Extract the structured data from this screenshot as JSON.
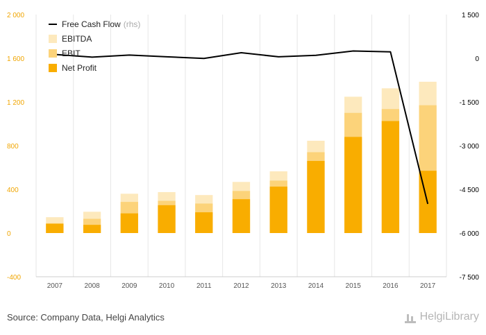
{
  "chart_data": {
    "type": "bar",
    "categories": [
      "2007",
      "2008",
      "2009",
      "2010",
      "2011",
      "2012",
      "2013",
      "2014",
      "2015",
      "2016",
      "2017"
    ],
    "series": [
      {
        "name": "EBITDA",
        "kind": "bar",
        "axis": "left",
        "color": "#fde9bd",
        "values": [
          145,
          195,
          360,
          375,
          348,
          468,
          565,
          845,
          1248,
          1325,
          1385
        ]
      },
      {
        "name": "EBIT",
        "kind": "bar",
        "axis": "left",
        "color": "#fcd37a",
        "values": [
          90,
          130,
          285,
          295,
          270,
          385,
          480,
          740,
          1100,
          1135,
          1170
        ]
      },
      {
        "name": "Net Profit",
        "kind": "bar",
        "axis": "left",
        "color": "#f9ad00",
        "values": [
          85,
          75,
          180,
          255,
          190,
          310,
          425,
          660,
          880,
          1025,
          570
        ]
      },
      {
        "name": "Free Cash Flow",
        "kind": "line",
        "axis": "right",
        "color": "#000000",
        "values": [
          130,
          40,
          110,
          50,
          -5,
          190,
          50,
          100,
          250,
          220,
          -5000
        ]
      }
    ],
    "y_left": {
      "lim": [
        -400,
        2000
      ],
      "ticks": [
        -400,
        0,
        400,
        800,
        1200,
        1600,
        2000
      ],
      "tick_labels": [
        "-400",
        "0",
        "400",
        "800",
        "1 200",
        "1 600",
        "2 000"
      ],
      "color": "#f0a500"
    },
    "y_right": {
      "lim": [
        -7500,
        1500
      ],
      "ticks": [
        -7500,
        -6000,
        -4500,
        -3000,
        -1500,
        0,
        1500
      ],
      "tick_labels": [
        "-7 500",
        "-6 000",
        "-4 500",
        "-3 000",
        "-1 500",
        "0",
        "1 500"
      ],
      "color": "#000000"
    },
    "legend": {
      "position": "top-left",
      "items": [
        "Free Cash Flow",
        "EBITDA",
        "EBIT",
        "Net Profit"
      ],
      "note": "(rhs)"
    },
    "grid": "vertical-category-separators"
  },
  "source_text": "Source: Company Data, Helgi Analytics",
  "brand_text": "HelgiLibrary"
}
